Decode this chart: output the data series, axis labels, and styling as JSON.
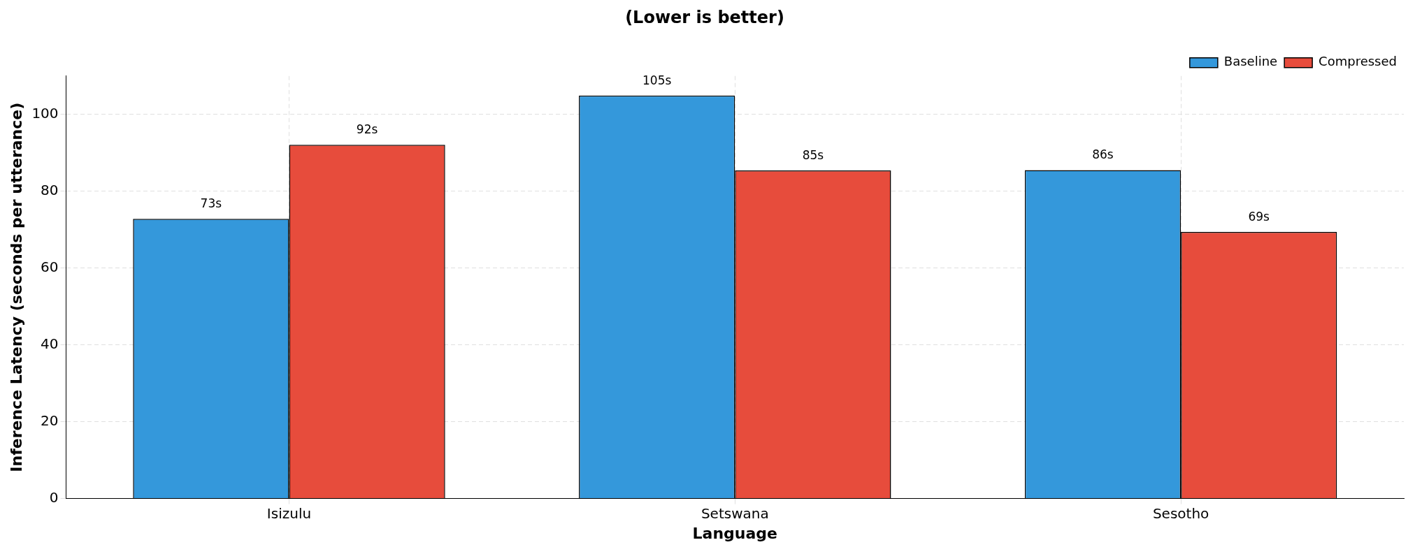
{
  "chart_data": {
    "type": "bar",
    "title": "(Lower is better)",
    "xlabel": "Language",
    "ylabel": "Inference Latency (seconds per utterance)",
    "categories": [
      "Isizulu",
      "Setswana",
      "Sesotho"
    ],
    "series": [
      {
        "name": "Baseline",
        "color": "#3498db",
        "values": [
          72.8,
          104.9,
          85.5
        ],
        "value_labels": [
          "73s",
          "105s",
          "86s"
        ]
      },
      {
        "name": "Compressed",
        "color": "#e74c3c",
        "values": [
          92.1,
          85.4,
          69.4
        ],
        "value_labels": [
          "92s",
          "85s",
          "69s"
        ]
      }
    ],
    "ylim": [
      0,
      110
    ],
    "yticks": [
      0,
      20,
      40,
      60,
      80,
      100
    ],
    "grid": true,
    "legend": "top right"
  }
}
